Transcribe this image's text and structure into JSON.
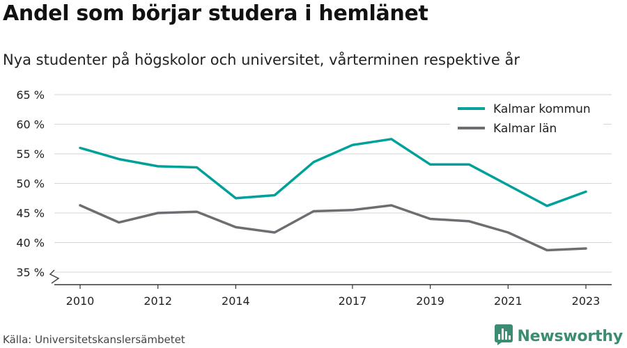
{
  "title": "Andel som börjar studera i hemlänet",
  "subtitle": "Nya studenter på högskolor och universitet, vårterminen respektive år",
  "source": "Källa: Universitetskanslersämbetet",
  "brand": {
    "name": "Newsworthy",
    "icon": "bar-chart-logo-icon",
    "color": "#3c8c74"
  },
  "chart_data": {
    "type": "line",
    "title": "Andel som börjar studera i hemlänet",
    "subtitle": "Nya studenter på högskolor och universitet, vårterminen respektive år",
    "xlabel": "",
    "ylabel": "",
    "x": [
      2010,
      2011,
      2012,
      2013,
      2014,
      2015,
      2016,
      2017,
      2018,
      2019,
      2020,
      2021,
      2022,
      2023
    ],
    "x_ticks": [
      2010,
      2012,
      2014,
      2017,
      2019,
      2021,
      2023
    ],
    "y_ticks": [
      35,
      40,
      45,
      50,
      55,
      60,
      65
    ],
    "y_tick_suffix": " %",
    "ylim": [
      35,
      65
    ],
    "axis_break": true,
    "grid": true,
    "legend_position": "top-right",
    "series": [
      {
        "name": "Kalmar kommun",
        "color": "#00a19a",
        "values": [
          56.0,
          54.1,
          52.9,
          52.7,
          47.5,
          48.0,
          53.6,
          56.5,
          57.5,
          53.2,
          53.2,
          49.7,
          46.2,
          48.6
        ]
      },
      {
        "name": "Kalmar län",
        "color": "#6d6d72",
        "values": [
          46.3,
          43.4,
          45.0,
          45.2,
          42.6,
          41.7,
          45.3,
          45.5,
          46.3,
          44.0,
          43.6,
          41.7,
          38.7,
          39.0
        ]
      }
    ]
  }
}
